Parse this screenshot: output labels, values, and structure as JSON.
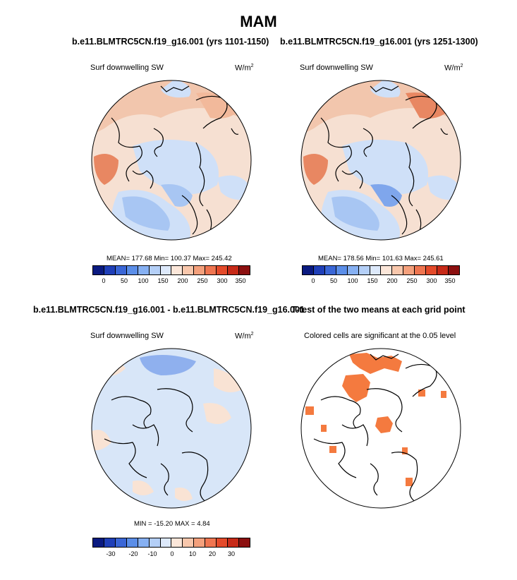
{
  "figure": {
    "title": "MAM",
    "panels": [
      {
        "title": "b.e11.BLMTRC5CN.f19_g16.001 (yrs 1101-1150)",
        "variable": "Surf downwelling SW",
        "units_base": "W/m",
        "units_exp": "2",
        "stats": "MEAN= 177.68  Min= 100.37  Max= 245.42"
      },
      {
        "title": "b.e11.BLMTRC5CN.f19_g16.001 (yrs 1251-1300)",
        "variable": "Surf downwelling SW",
        "units_base": "W/m",
        "units_exp": "2",
        "stats": "MEAN= 178.56  Min= 101.63  Max= 245.61"
      },
      {
        "title": "b.e11.BLMTRC5CN.f19_g16.001 - b.e11.BLMTRC5CN.f19_g16.001",
        "variable": "Surf downwelling SW",
        "units_base": "W/m",
        "units_exp": "2",
        "stats": "MIN = -15.20 MAX =   4.84"
      },
      {
        "title": "T-test of the two means at each grid point",
        "variable": "Colored cells are significant at the 0.05 level"
      }
    ],
    "colorbar_abs": {
      "ticks": [
        "0",
        "50",
        "100",
        "150",
        "200",
        "250",
        "300",
        "350"
      ],
      "colors": [
        "#0a1a80",
        "#1f3fb8",
        "#3a66d6",
        "#5b8ee8",
        "#86b0f2",
        "#b4cff7",
        "#dde9fb",
        "#fbe6d9",
        "#f8c7ac",
        "#f4a07c",
        "#ef7550",
        "#e44a2a",
        "#c72a18",
        "#8c1010"
      ]
    },
    "colorbar_diff": {
      "ticks": [
        "-30",
        "-20",
        "-10",
        "0",
        "10",
        "20",
        "30"
      ],
      "colors": [
        "#0a1a80",
        "#1f3fb8",
        "#3a66d6",
        "#5b8ee8",
        "#86b0f2",
        "#b4cff7",
        "#dde9fb",
        "#fbe6d9",
        "#f8c7ac",
        "#f4a07c",
        "#ef7550",
        "#e44a2a",
        "#c72a18",
        "#8c1010"
      ]
    },
    "colors": {
      "ocean_base": "#f6e0d2",
      "cool_light": "#cfe0f8",
      "cool_mid": "#a8c6f3",
      "cool_strong": "#7fa6ec",
      "warm_mid": "#f2b99b",
      "warm_strong": "#e88762",
      "diff_base": "#d8e6f8",
      "diff_warm": "#f9e3d4",
      "diff_cool": "#8fb0ee",
      "sig_cells": "#f47a3f"
    }
  }
}
